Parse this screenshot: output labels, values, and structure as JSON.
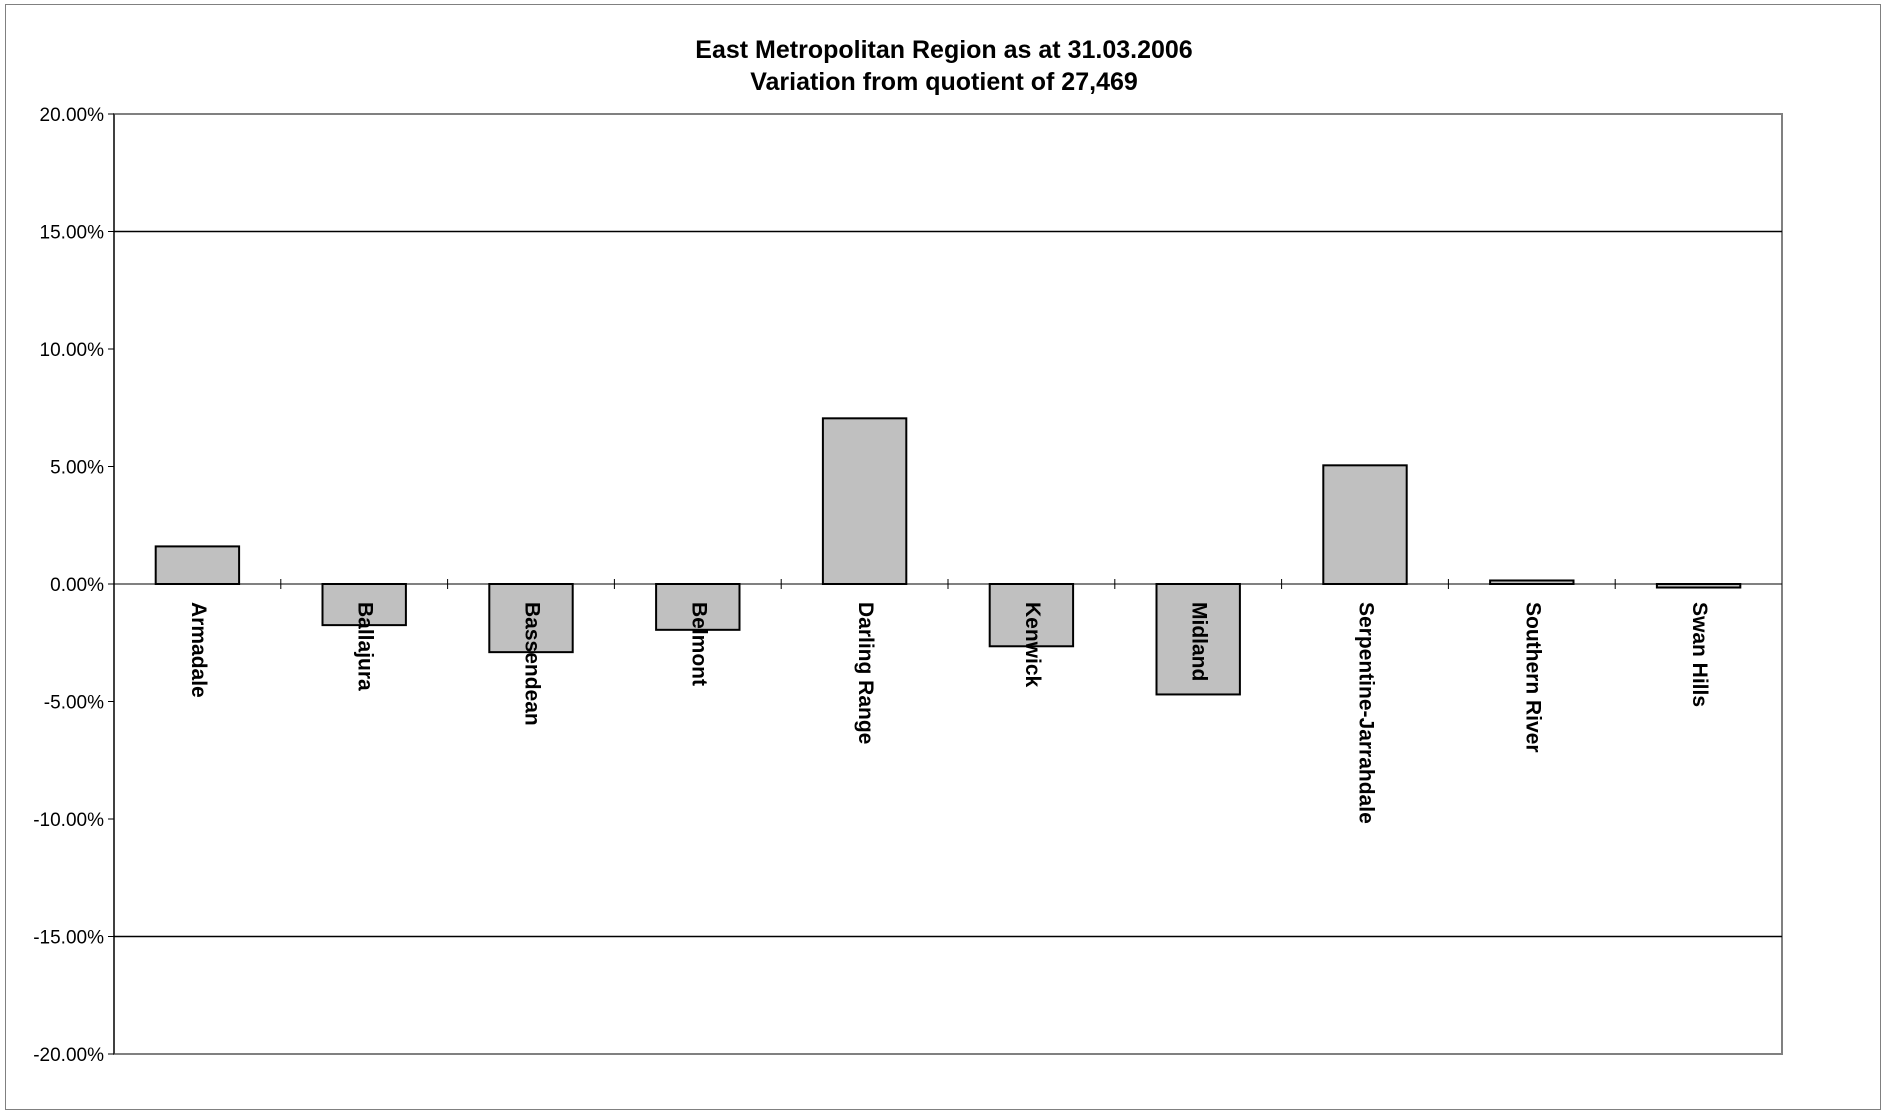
{
  "chart_data": {
    "type": "bar",
    "title_lines": [
      "East Metropolitan Region as at 31.03.2006",
      "Variation from quotient of 27,469"
    ],
    "categories": [
      "Armadale",
      "Ballajura",
      "Bassendean",
      "Belmont",
      "Darling Range",
      "Kenwick",
      "Midland",
      "Serpentine-Jarrahdale",
      "Southern River",
      "Swan Hills"
    ],
    "values": [
      1.6,
      -1.75,
      -2.9,
      -1.95,
      7.05,
      -2.65,
      -4.7,
      5.05,
      0.15,
      -0.15
    ],
    "ylim": [
      -20,
      20
    ],
    "ytick_values": [
      20,
      15,
      10,
      5,
      0,
      -5,
      -10,
      -15,
      -20
    ],
    "ytick_labels": [
      "20.00%",
      "15.00%",
      "10.00%",
      "5.00%",
      "0.00%",
      "-5.00%",
      "-10.00%",
      "-15.00%",
      "-20.00%"
    ],
    "reference_lines": [
      15,
      -15
    ],
    "bar_color": "#c0c0c0",
    "legend": "none",
    "grid": false
  }
}
